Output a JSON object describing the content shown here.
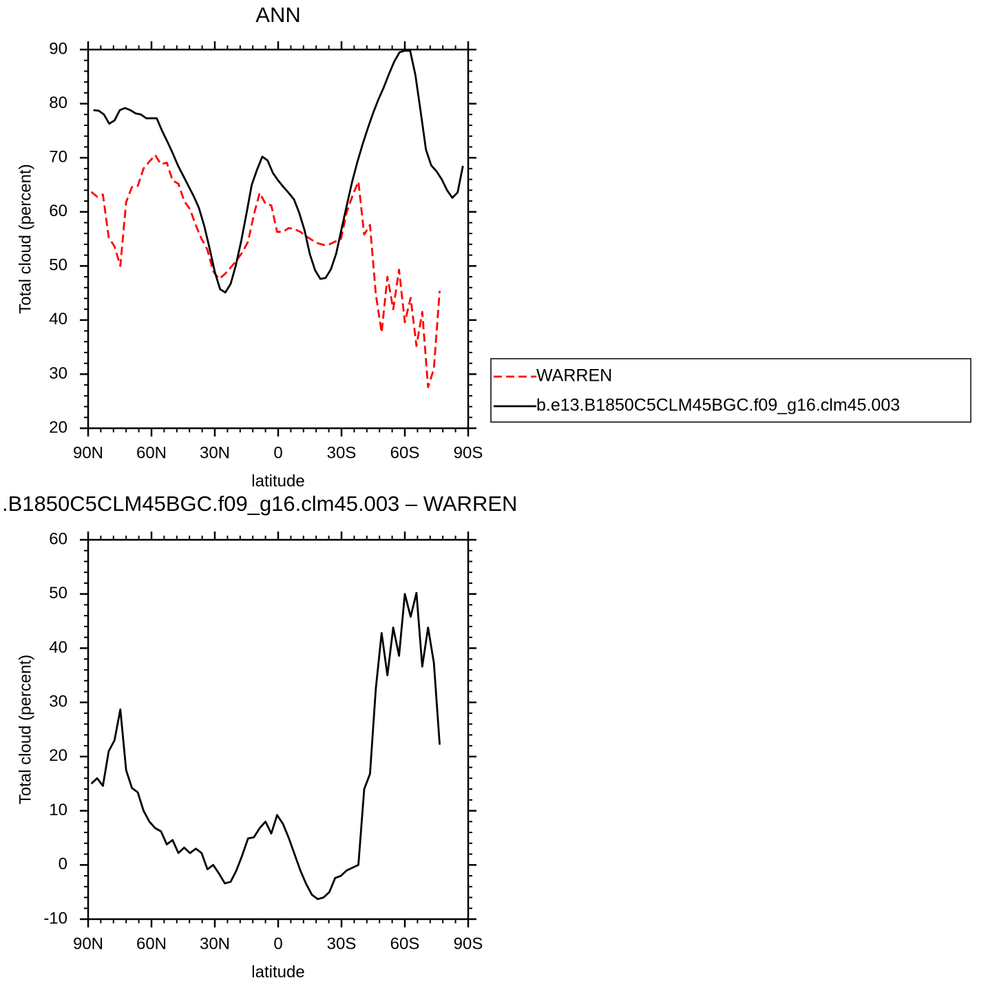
{
  "chart_data": [
    {
      "type": "line",
      "title": "ANN",
      "xlabel": "latitude",
      "ylabel": "Total cloud (percent)",
      "xlim": [
        90,
        -90
      ],
      "xticks": [
        {
          "value": 90,
          "label": "90N"
        },
        {
          "value": 60,
          "label": "60N"
        },
        {
          "value": 30,
          "label": "30N"
        },
        0,
        {
          "value": -30,
          "label": "30S"
        },
        {
          "value": -60,
          "label": "60S"
        },
        {
          "value": -90,
          "label": "90S"
        }
      ],
      "ylim": [
        20,
        90
      ],
      "yticks": [
        20,
        30,
        40,
        50,
        60,
        70,
        80,
        90
      ],
      "legend": "right",
      "series": [
        {
          "name": "WARREN",
          "color": "#ff0000",
          "dashed": true,
          "x": [
            88.5,
            85.75,
            83,
            80.25,
            77.5,
            74.75,
            72,
            69.25,
            66.5,
            63.75,
            61,
            58.25,
            55.5,
            52.75,
            50,
            47.25,
            44.5,
            41.75,
            39,
            36.25,
            33.5,
            30.75,
            28,
            25.25,
            22.5,
            19.75,
            17,
            14.25,
            11.5,
            8.75,
            6,
            3.25,
            0.5,
            -2.25,
            -5,
            -7.75,
            -10.5,
            -13.25,
            -16,
            -18.75,
            -21.5,
            -24.25,
            -27,
            -29.75,
            -32.5,
            -35.25,
            -38,
            -40.75,
            -43.5,
            -46.25,
            -49,
            -51.75,
            -54.5,
            -57.25,
            -60,
            -62.75,
            -65.5,
            -68.25,
            -71,
            -73.75,
            -76.5
          ],
          "values": [
            63.7,
            62.8,
            63.2,
            55.3,
            53.6,
            50.0,
            61.8,
            64.6,
            64.8,
            68.0,
            69.3,
            70.5,
            68.8,
            69.1,
            65.8,
            65.2,
            62.0,
            60.5,
            57.5,
            55.0,
            53.0,
            49.0,
            47.6,
            48.5,
            49.7,
            51.0,
            52.5,
            54.5,
            59.5,
            63.5,
            61.5,
            61.2,
            56.3,
            56.3,
            57.0,
            56.8,
            56.3,
            55.5,
            54.8,
            54.2,
            53.9,
            54.0,
            54.5,
            55.0,
            60.0,
            63.0,
            65.6,
            55.8,
            57.6,
            44.8,
            37.7,
            48.0,
            42.0,
            49.3,
            39.6,
            44.1,
            35.2,
            41.5,
            27.6,
            31.0,
            45.4
          ]
        },
        {
          "name": "b.e13.B1850C5CLM45BGC.f09_g16.clm45.003",
          "color": "#000000",
          "x": [
            87.5,
            85,
            82.5,
            80,
            77.5,
            75,
            72.5,
            70,
            67.5,
            65,
            62.5,
            60,
            57.5,
            55,
            52.5,
            50,
            47.5,
            45,
            42.5,
            40,
            37.5,
            35,
            32.5,
            30,
            27.5,
            25,
            22.5,
            20,
            17.5,
            15,
            12.5,
            10,
            7.5,
            5,
            2.5,
            0,
            -2.5,
            -5,
            -7.5,
            -10,
            -12.5,
            -15,
            -17.5,
            -20,
            -22.5,
            -25,
            -27.5,
            -30,
            -32.5,
            -35,
            -37.5,
            -40,
            -42.5,
            -45,
            -47.5,
            -50,
            -52.5,
            -55,
            -57.5,
            -60,
            -62.5,
            -65,
            -67.5,
            -70,
            -72.5,
            -75,
            -77.5,
            -80,
            -82.5,
            -85,
            -87.5
          ],
          "values": [
            78.8,
            78.7,
            78.0,
            76.3,
            76.9,
            78.8,
            79.2,
            78.8,
            78.2,
            78.0,
            77.3,
            77.3,
            77.3,
            75.0,
            73.0,
            70.9,
            68.6,
            66.7,
            64.8,
            62.9,
            60.7,
            57.4,
            53.3,
            48.9,
            45.7,
            45.1,
            46.7,
            50.2,
            54.6,
            59.7,
            65.0,
            67.8,
            70.2,
            69.5,
            67.2,
            65.8,
            64.6,
            63.5,
            62.3,
            59.8,
            56.6,
            52.2,
            49.2,
            47.6,
            47.8,
            49.4,
            52.3,
            56.8,
            61.2,
            65.5,
            69.2,
            72.5,
            75.5,
            78.3,
            80.8,
            83.0,
            85.5,
            87.8,
            89.5,
            89.8,
            89.8,
            85.3,
            78.5,
            71.5,
            68.6,
            67.5,
            66.0,
            64.0,
            62.6,
            63.6,
            68.5
          ]
        }
      ]
    },
    {
      "type": "line",
      "title": ".B1850C5CLM45BGC.f09_g16.clm45.003 – WARREN",
      "xlabel": "latitude",
      "ylabel": "Total cloud (percent)",
      "xlim": [
        90,
        -90
      ],
      "xticks": [
        {
          "value": 90,
          "label": "90N"
        },
        {
          "value": 60,
          "label": "60N"
        },
        {
          "value": 30,
          "label": "30N"
        },
        0,
        {
          "value": -30,
          "label": "30S"
        },
        {
          "value": -60,
          "label": "60S"
        },
        {
          "value": -90,
          "label": "90S"
        }
      ],
      "ylim": [
        -10,
        60
      ],
      "yticks": [
        -10,
        0,
        10,
        20,
        30,
        40,
        50,
        60
      ],
      "color": "#000000",
      "x": [
        88.5,
        85.75,
        83,
        80.25,
        77.5,
        74.75,
        72,
        69.25,
        66.5,
        63.75,
        61,
        58.25,
        55.5,
        52.75,
        50,
        47.25,
        44.5,
        41.75,
        39,
        36.25,
        33.5,
        30.75,
        28,
        25.25,
        22.5,
        19.75,
        17,
        14.25,
        11.5,
        8.75,
        6,
        3.25,
        0.5,
        -2.25,
        -5,
        -7.75,
        -10.5,
        -13.25,
        -16,
        -18.75,
        -21.5,
        -24.25,
        -27,
        -29.75,
        -32.5,
        -35.25,
        -38,
        -40.75,
        -43.5,
        -46.25,
        -49,
        -51.75,
        -54.5,
        -57.25,
        -60,
        -62.75,
        -65.5,
        -68.25,
        -71,
        -73.75,
        -76.5
      ],
      "values": [
        15,
        16,
        14.6,
        21,
        23,
        28.7,
        17.5,
        14.2,
        13.4,
        10,
        8,
        6.8,
        6.2,
        3.8,
        4.6,
        2.2,
        3.2,
        2.2,
        3,
        2.2,
        -0.8,
        0,
        -1.6,
        -3.4,
        -3.1,
        -1,
        1.8,
        4.9,
        5.1,
        6.8,
        8,
        5.8,
        9.2,
        7.6,
        5,
        2,
        -1,
        -3.5,
        -5.5,
        -6.3,
        -6,
        -5,
        -2.4,
        -2,
        -1,
        -0.5,
        0,
        14,
        16.8,
        32.5,
        42.8,
        35,
        43.8,
        38.6,
        50,
        45.8,
        50.2,
        36.6,
        43.8,
        37.3,
        22.2
      ]
    }
  ]
}
